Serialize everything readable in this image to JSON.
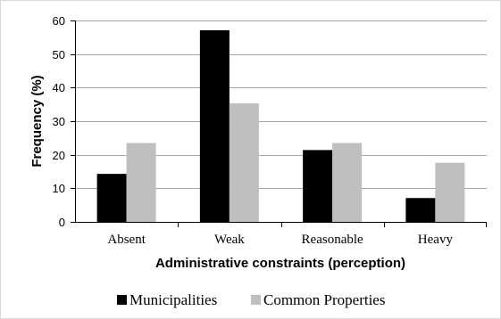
{
  "chart_data": {
    "type": "bar",
    "categories": [
      "Absent",
      "Weak",
      "Reasonable",
      "Heavy"
    ],
    "series": [
      {
        "name": "Municipalities",
        "values": [
          14.3,
          57.1,
          21.4,
          7.1
        ],
        "color": "#000000"
      },
      {
        "name": "Common Properties",
        "values": [
          23.5,
          35.3,
          23.5,
          17.6
        ],
        "color": "#bfbfbf"
      }
    ],
    "xlabel": "Administrative constraints (perception)",
    "ylabel": "Frequency (%)",
    "ylim": [
      0,
      60
    ],
    "yticks": [
      0,
      10,
      20,
      30,
      40,
      50,
      60
    ],
    "grid": true,
    "legend_position": "bottom",
    "gridline_color": "#a6a6a6"
  }
}
